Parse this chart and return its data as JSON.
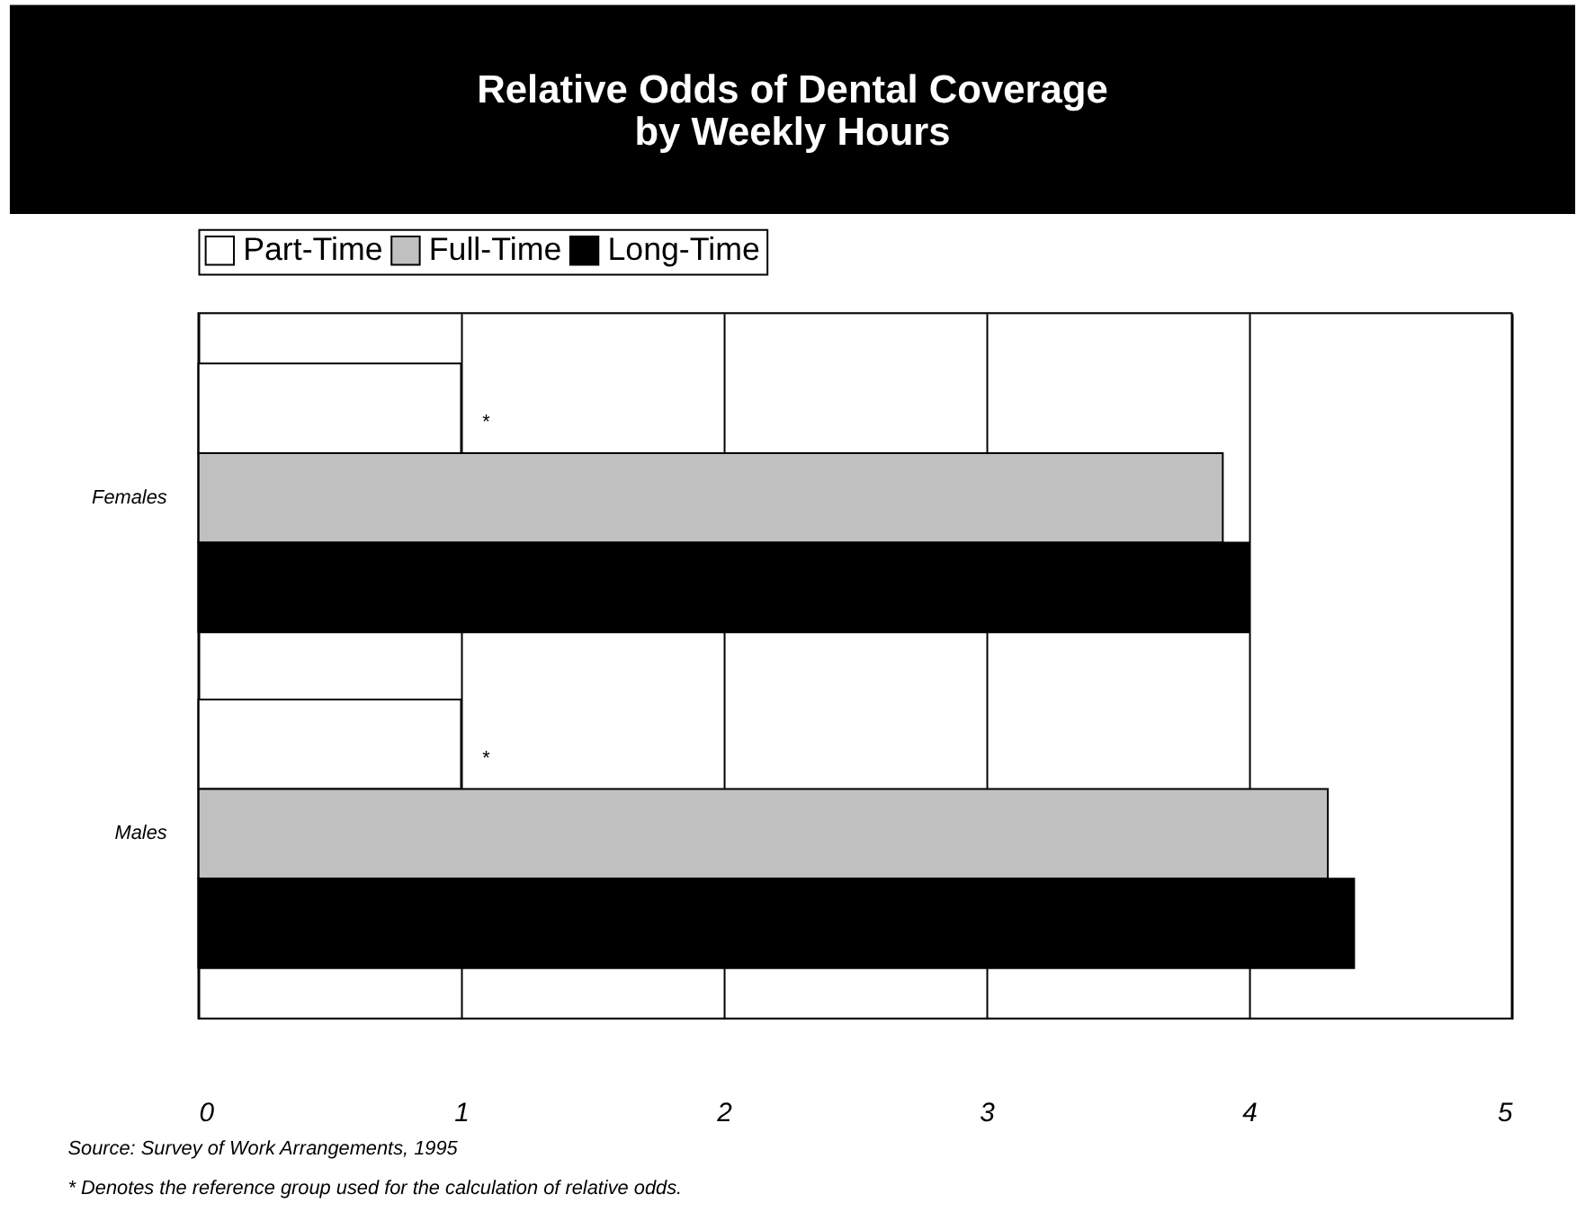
{
  "chart_data": {
    "type": "bar",
    "orientation": "horizontal",
    "title": "Relative Odds of Dental Coverage\nby Weekly Hours",
    "categories": [
      "Females",
      "Males"
    ],
    "series": [
      {
        "name": "Part-Time",
        "color": "#ffffff",
        "values": [
          1,
          1
        ]
      },
      {
        "name": "Full-Time",
        "color": "#c0c0c0",
        "values": [
          3.9,
          4.3
        ]
      },
      {
        "name": "Long-Time",
        "color": "#000000",
        "values": [
          4.0,
          4.4
        ]
      }
    ],
    "xlim": [
      0,
      5
    ],
    "xticks": [
      0,
      1,
      2,
      3,
      4,
      5
    ],
    "grid": "x",
    "legend": "top",
    "annotations": [
      "*",
      "*",
      "Source: Survey of Work Arrangements, 1995",
      "* Denotes the reference group used for the calculation of relative odds."
    ]
  }
}
